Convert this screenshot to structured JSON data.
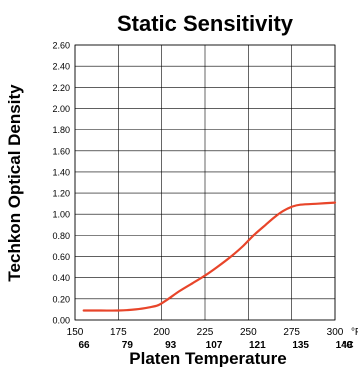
{
  "chart_data": {
    "type": "line",
    "title": "Static Sensitivity",
    "xlabel": "Platen Temperature",
    "ylabel": "Techkon Optical Density",
    "x_unit_primary": "°F",
    "x_unit_secondary": "°C",
    "xlim": [
      150,
      300
    ],
    "ylim": [
      0,
      2.6
    ],
    "grid": true,
    "x_ticks": [
      150,
      175,
      200,
      225,
      250,
      275,
      300
    ],
    "x_ticks_celsius": [
      "66",
      "79",
      "93",
      "107",
      "121",
      "135",
      "149"
    ],
    "y_ticks": [
      "0.00",
      "0.20",
      "0.40",
      "0.60",
      "0.80",
      "1.00",
      "1.20",
      "1.40",
      "1.60",
      "1.80",
      "2.00",
      "2.20",
      "2.40",
      "2.60"
    ],
    "series": [
      {
        "color": "#e8452a",
        "x": [
          155,
          165,
          175,
          185,
          193,
          198,
          203,
          210,
          218,
          225,
          232,
          240,
          247,
          253,
          260,
          265,
          270,
          275,
          280,
          290,
          300
        ],
        "y": [
          0.09,
          0.09,
          0.09,
          0.1,
          0.12,
          0.14,
          0.19,
          0.27,
          0.35,
          0.42,
          0.5,
          0.6,
          0.7,
          0.8,
          0.9,
          0.97,
          1.03,
          1.07,
          1.09,
          1.1,
          1.11
        ]
      }
    ]
  }
}
